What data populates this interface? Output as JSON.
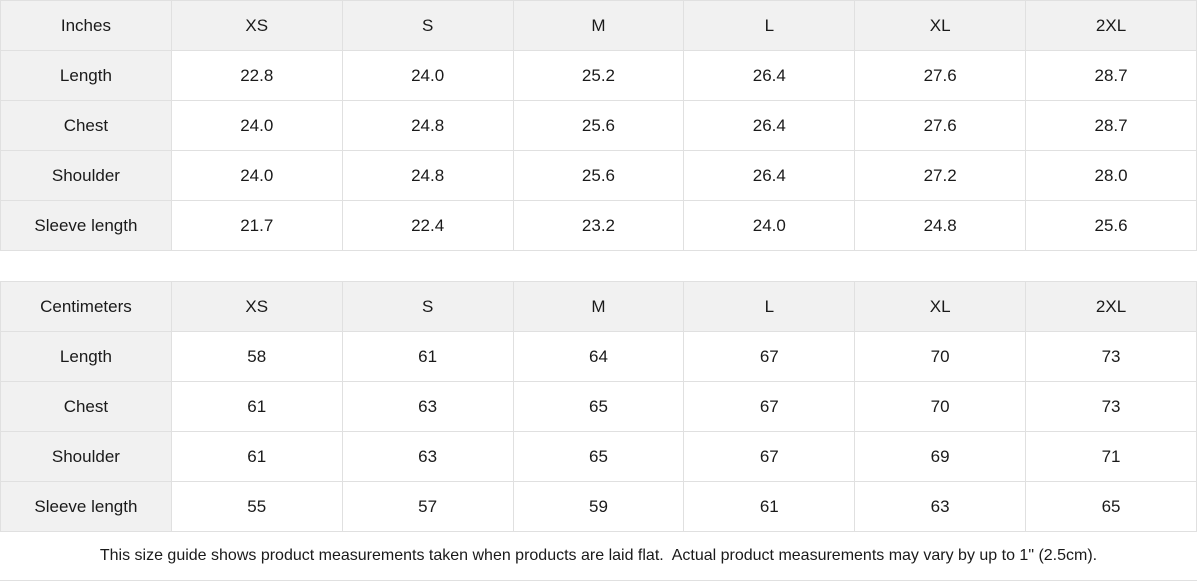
{
  "colors": {
    "header_bg": "#f1f1f1",
    "label_column_bg": "#f1f1f1",
    "cell_bg": "#ffffff",
    "border": "#e0e0e0",
    "text": "#1a1a1a"
  },
  "tables": [
    {
      "id": "inches",
      "unit_label": "Inches",
      "sizes": [
        "XS",
        "S",
        "M",
        "L",
        "XL",
        "2XL"
      ],
      "rows": [
        {
          "label": "Length",
          "values": [
            "22.8",
            "24.0",
            "25.2",
            "26.4",
            "27.6",
            "28.7"
          ]
        },
        {
          "label": "Chest",
          "values": [
            "24.0",
            "24.8",
            "25.6",
            "26.4",
            "27.6",
            "28.7"
          ]
        },
        {
          "label": "Shoulder",
          "values": [
            "24.0",
            "24.8",
            "25.6",
            "26.4",
            "27.2",
            "28.0"
          ]
        },
        {
          "label": "Sleeve length",
          "values": [
            "21.7",
            "22.4",
            "23.2",
            "24.0",
            "24.8",
            "25.6"
          ]
        }
      ]
    },
    {
      "id": "centimeters",
      "unit_label": "Centimeters",
      "sizes": [
        "XS",
        "S",
        "M",
        "L",
        "XL",
        "2XL"
      ],
      "rows": [
        {
          "label": "Length",
          "values": [
            "58",
            "61",
            "64",
            "67",
            "70",
            "73"
          ]
        },
        {
          "label": "Chest",
          "values": [
            "61",
            "63",
            "65",
            "67",
            "70",
            "73"
          ]
        },
        {
          "label": "Shoulder",
          "values": [
            "61",
            "63",
            "65",
            "67",
            "69",
            "71"
          ]
        },
        {
          "label": "Sleeve length",
          "values": [
            "55",
            "57",
            "59",
            "61",
            "63",
            "65"
          ]
        }
      ]
    }
  ],
  "footer": {
    "note": "This size guide shows product measurements taken when products are laid flat.  Actual product measurements may vary by up to 1\" (2.5cm)."
  }
}
